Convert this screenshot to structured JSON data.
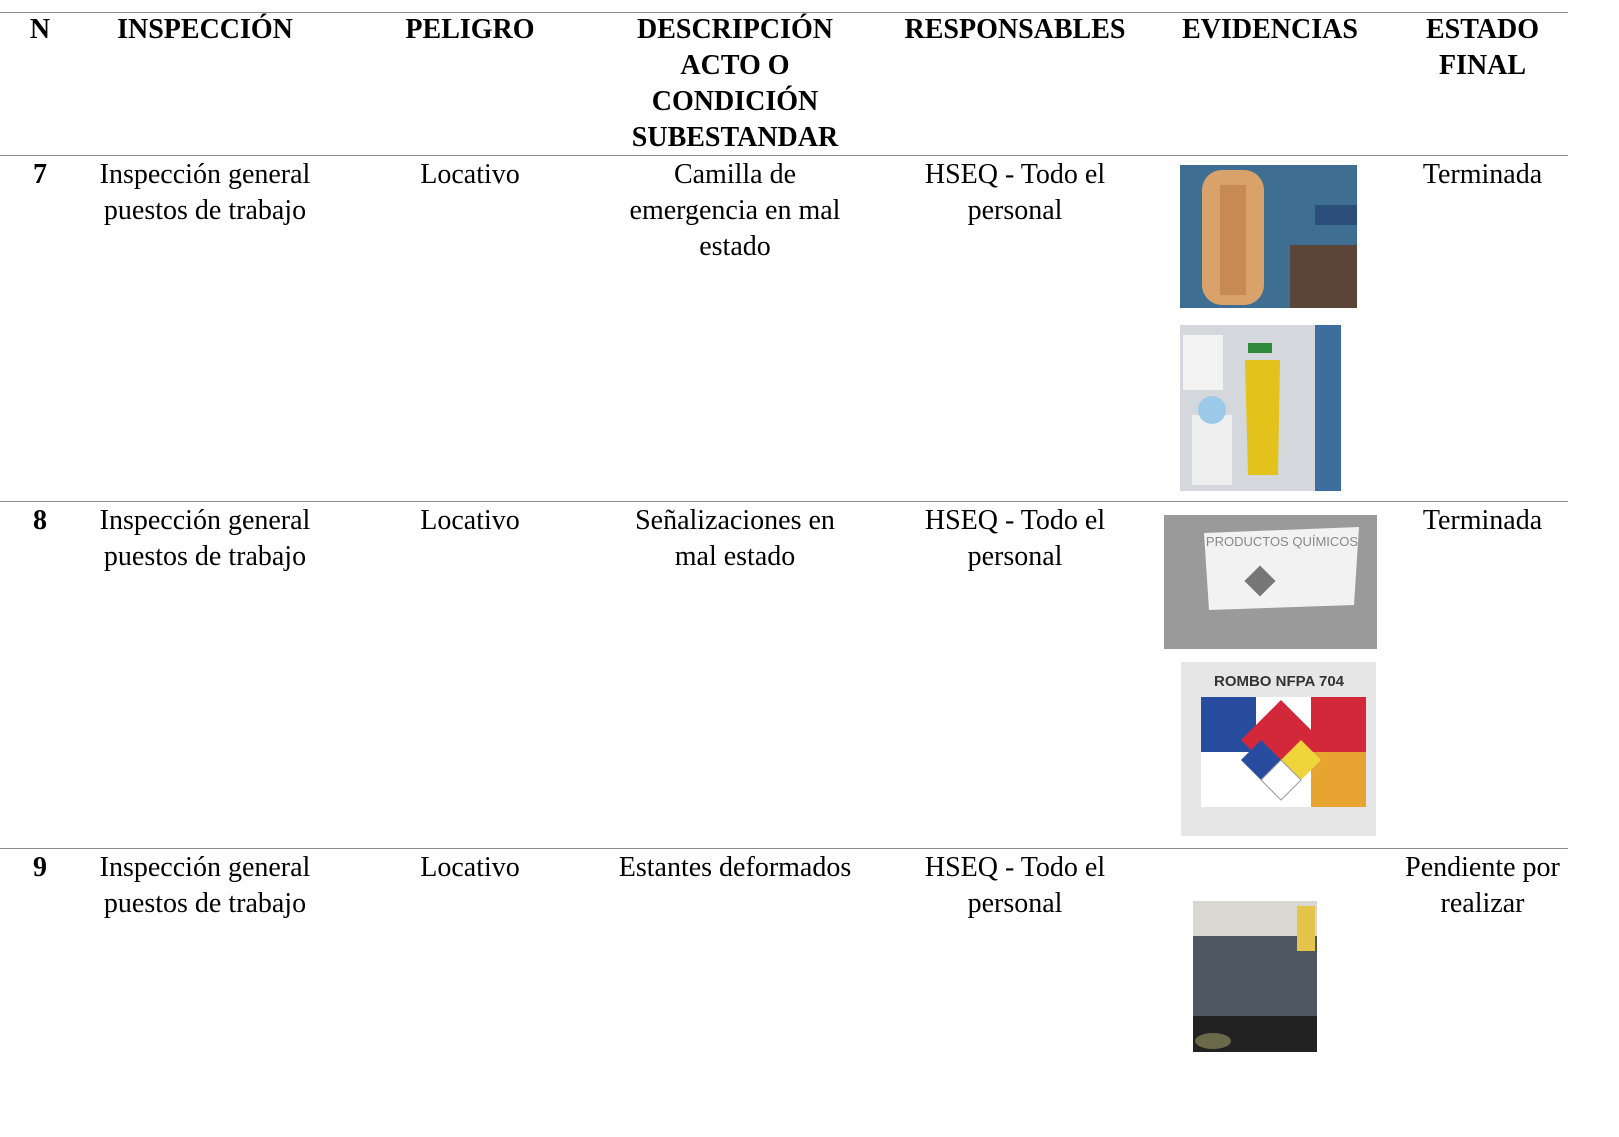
{
  "table": {
    "header": [
      "N",
      "INSPECCIÓN",
      "PELIGRO",
      "DESCRIPCIÓN ACTO O CONDICIÓN SUBESTANDAR",
      "RESPONSABLES",
      "EVIDENCIAS",
      "ESTADO FINAL"
    ],
    "rows": [
      {
        "n": "7",
        "inspection": "Inspección general puestos de trabajo",
        "hazard": "Locativo",
        "description": "Camilla de emergencia en mal estado",
        "responsible": "HSEQ - Todo el personal",
        "status": "Terminada"
      },
      {
        "n": "8",
        "inspection": "Inspección general puestos de trabajo",
        "hazard": "Locativo",
        "description": "Señalizaciones en mal estado",
        "responsible": "HSEQ - Todo el personal",
        "status": "Terminada",
        "evidence_texts": [
          "PRODUCTOS QUÍMICOS",
          "ROMBO NFPA 704"
        ]
      },
      {
        "n": "9",
        "inspection": "Inspección general puestos de trabajo",
        "hazard": "Locativo",
        "description": "Estantes deformados",
        "responsible": "HSEQ - Todo el personal",
        "status": "Pendiente por realizar"
      }
    ]
  }
}
